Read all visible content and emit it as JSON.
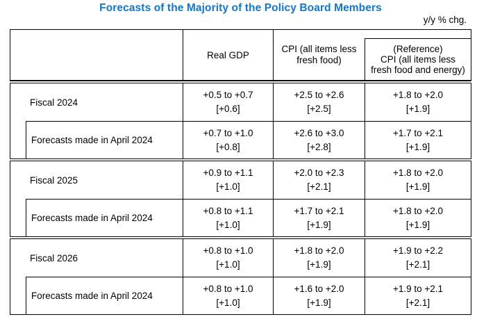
{
  "page": {
    "title": "Forecasts of the Majority of the Policy Board Members",
    "unit_note": "y/y % chg."
  },
  "colors": {
    "title_blue": "#1177d2",
    "text": "#000000",
    "background": "#ffffff"
  },
  "table": {
    "header": {
      "gdp": "Real GDP",
      "cpi": "CPI (all items less\nfresh food)",
      "reference": "(Reference)\nCPI (all items less\nfresh food and energy)"
    },
    "sections": [
      {
        "rows": [
          {
            "label": "Fiscal 2024",
            "gdp_range": "+0.5 to +0.7",
            "gdp_median": "[+0.6]",
            "cpi_range": "+2.5 to +2.6",
            "cpi_median": "[+2.5]",
            "ref_range": "+1.8 to +2.0",
            "ref_median": "[+1.9]"
          },
          {
            "label": "Forecasts made in April 2024",
            "gdp_range": "+0.7 to +1.0",
            "gdp_median": "[+0.8]",
            "cpi_range": "+2.6 to +3.0",
            "cpi_median": "[+2.8]",
            "ref_range": "+1.7 to +2.1",
            "ref_median": "[+1.9]"
          }
        ]
      },
      {
        "rows": [
          {
            "label": "Fiscal 2025",
            "gdp_range": "+0.9 to +1.1",
            "gdp_median": "[+1.0]",
            "cpi_range": "+2.0 to +2.3",
            "cpi_median": "[+2.1]",
            "ref_range": "+1.8 to +2.0",
            "ref_median": "[+1.9]"
          },
          {
            "label": "Forecasts made in April 2024",
            "gdp_range": "+0.8 to +1.1",
            "gdp_median": "[+1.0]",
            "cpi_range": "+1.7 to +2.1",
            "cpi_median": "[+1.9]",
            "ref_range": "+1.8 to +2.0",
            "ref_median": "[+1.9]"
          }
        ]
      },
      {
        "rows": [
          {
            "label": "Fiscal 2026",
            "gdp_range": "+0.8 to +1.0",
            "gdp_median": "[+1.0]",
            "cpi_range": "+1.8 to +2.0",
            "cpi_median": "[+1.9]",
            "ref_range": "+1.9 to +2.2",
            "ref_median": "[+2.1]"
          },
          {
            "label": "Forecasts made in April 2024",
            "gdp_range": "+0.8 to +1.0",
            "gdp_median": "[+1.0]",
            "cpi_range": "+1.6 to +2.0",
            "cpi_median": "[+1.9]",
            "ref_range": "+1.9 to +2.1",
            "ref_median": "[+2.1]"
          }
        ]
      }
    ]
  }
}
